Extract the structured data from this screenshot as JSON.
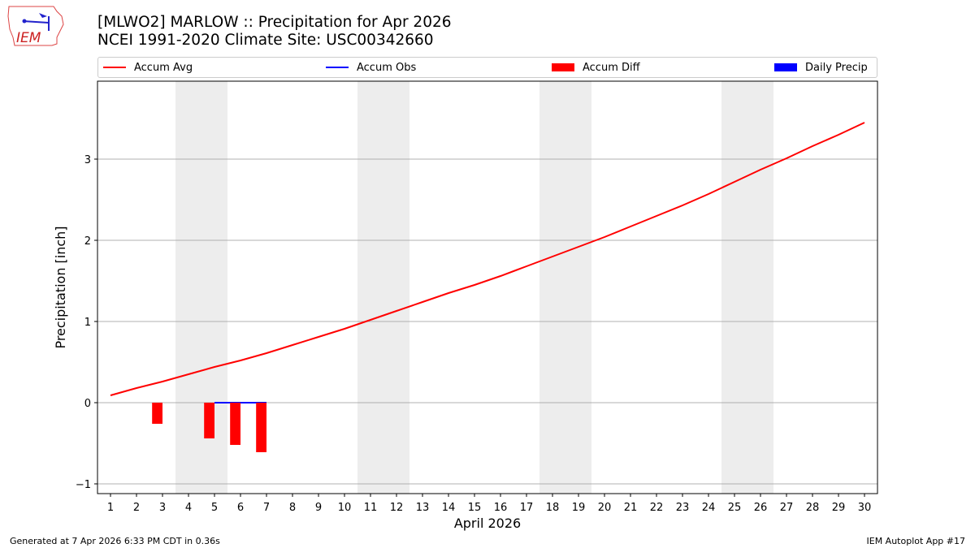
{
  "logo_text": "IEM",
  "title_line1": "[MLWO2] MARLOW :: Precipitation for Apr 2026",
  "title_line2": "NCEI 1991-2020 Climate Site: USC00342660",
  "footer_left": "Generated at 7 Apr 2026 6:33 PM CDT in 0.36s",
  "footer_right": "IEM Autoplot App #17",
  "chart_data": {
    "type": "line",
    "xlabel": "April 2026",
    "ylabel": "Precipitation [inch]",
    "xlim": [
      0.5,
      30.5
    ],
    "ylim": [
      -1.12,
      3.96
    ],
    "x_ticks": [
      1,
      2,
      3,
      4,
      5,
      6,
      7,
      8,
      9,
      10,
      11,
      12,
      13,
      14,
      15,
      16,
      17,
      18,
      19,
      20,
      21,
      22,
      23,
      24,
      25,
      26,
      27,
      28,
      29,
      30
    ],
    "y_ticks": [
      -1,
      0,
      1,
      2,
      3
    ],
    "grid": "y",
    "legend_placement": "top",
    "weekend_shading": [
      [
        3.5,
        5.5
      ],
      [
        10.5,
        12.5
      ],
      [
        17.5,
        19.5
      ],
      [
        24.5,
        26.5
      ]
    ],
    "series": [
      {
        "name": "Accum Avg",
        "kind": "line",
        "color": "#ff0000",
        "x": [
          1,
          2,
          3,
          4,
          5,
          6,
          7,
          8,
          9,
          10,
          11,
          12,
          13,
          14,
          15,
          16,
          17,
          18,
          19,
          20,
          21,
          22,
          23,
          24,
          25,
          26,
          27,
          28,
          29,
          30
        ],
        "values": [
          0.09,
          0.18,
          0.26,
          0.35,
          0.44,
          0.52,
          0.61,
          0.71,
          0.81,
          0.91,
          1.02,
          1.13,
          1.24,
          1.35,
          1.45,
          1.56,
          1.68,
          1.8,
          1.92,
          2.04,
          2.17,
          2.3,
          2.43,
          2.57,
          2.72,
          2.87,
          3.01,
          3.16,
          3.3,
          3.45
        ]
      },
      {
        "name": "Accum Obs",
        "kind": "line",
        "color": "#0000ff",
        "x": [
          5,
          6,
          7
        ],
        "values": [
          0,
          0,
          0
        ]
      },
      {
        "name": "Accum Diff",
        "kind": "bar",
        "color": "#ff0000",
        "x": [
          3,
          5,
          6,
          7
        ],
        "values": [
          -0.26,
          -0.44,
          -0.52,
          -0.61
        ]
      },
      {
        "name": "Daily Precip",
        "kind": "bar",
        "color": "#0000ff",
        "x": [],
        "values": []
      }
    ]
  }
}
